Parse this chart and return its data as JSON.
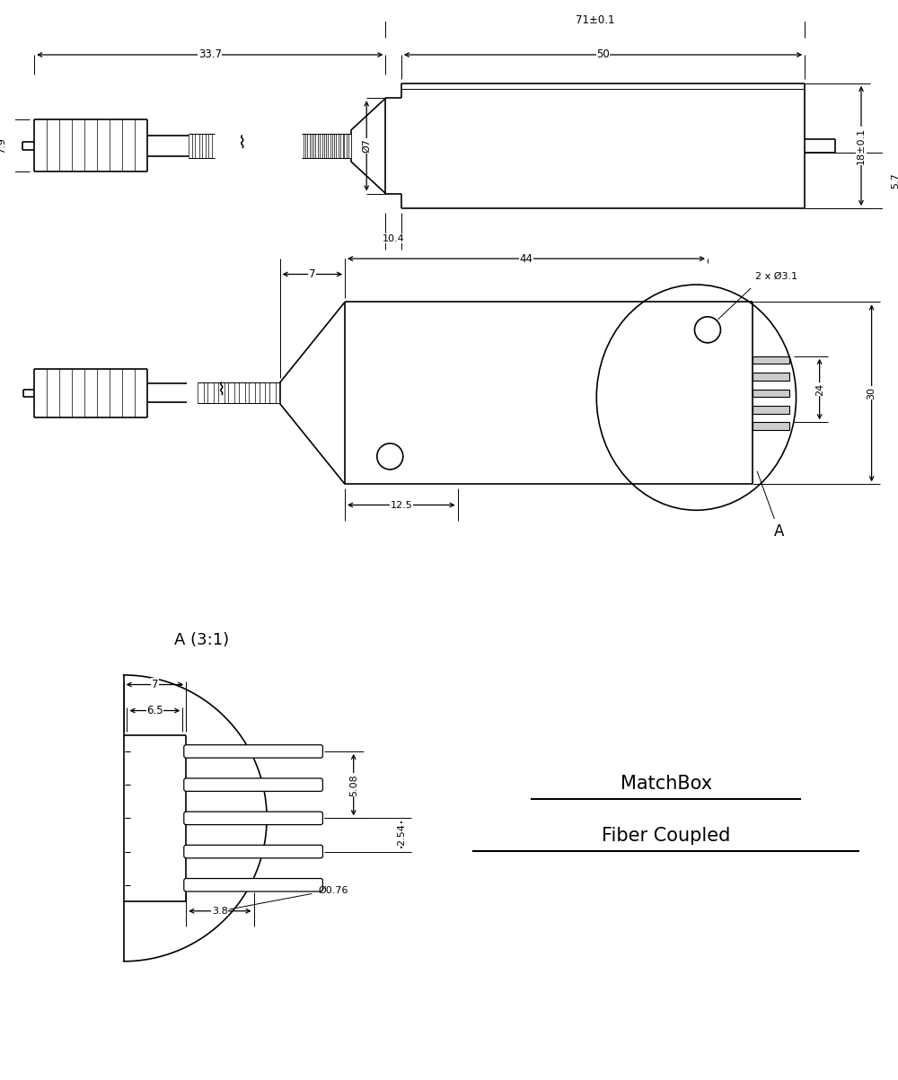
{
  "bg_color": "#ffffff",
  "line_color": "#000000",
  "dim_71": "71±0.1",
  "dim_50": "50",
  "dim_33_7": "33.7",
  "dim_7_9": "7.9",
  "dim_d7": "Ø7",
  "dim_10_4": "10.4",
  "dim_18": "18±0.1",
  "dim_5_7": "5.7",
  "dim_44": "44",
  "dim_7_top": "7",
  "dim_12_5": "12.5",
  "dim_24": "24",
  "dim_30": "30",
  "dim_2xd31": "2 x Ø3.1",
  "dim_7b": "7",
  "dim_6_5": "6.5",
  "dim_5_08": "5.08",
  "dim_2_54": "2.54",
  "dim_3_8": "3.8",
  "dim_d076": "Ø0.76",
  "dim_A31": "A (3:1)",
  "label_matchbox": "MatchBox",
  "label_fiber": "Fiber Coupled"
}
